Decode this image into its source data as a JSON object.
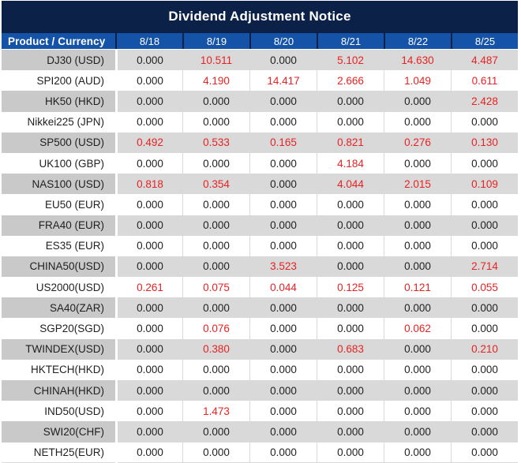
{
  "title": "Dividend Adjustment Notice",
  "chart_data": {
    "type": "table",
    "title": "Dividend Adjustment Notice",
    "columns": [
      "Product / Currency",
      "8/18",
      "8/19",
      "8/20",
      "8/21",
      "8/22",
      "8/25"
    ],
    "rows": [
      {
        "product": "DJ30 (USD)",
        "values": [
          "0.000",
          "10.511",
          "0.000",
          "5.102",
          "14.630",
          "4.487"
        ],
        "red": [
          0,
          1,
          0,
          1,
          1,
          1
        ]
      },
      {
        "product": "SPI200 (AUD)",
        "values": [
          "0.000",
          "4.190",
          "14.417",
          "2.666",
          "1.049",
          "0.611"
        ],
        "red": [
          0,
          1,
          1,
          1,
          1,
          1
        ]
      },
      {
        "product": "HK50 (HKD)",
        "values": [
          "0.000",
          "0.000",
          "0.000",
          "0.000",
          "0.000",
          "2.428"
        ],
        "red": [
          0,
          0,
          0,
          0,
          0,
          1
        ]
      },
      {
        "product": "Nikkei225 (JPN)",
        "values": [
          "0.000",
          "0.000",
          "0.000",
          "0.000",
          "0.000",
          "0.000"
        ],
        "red": [
          0,
          0,
          0,
          0,
          0,
          0
        ]
      },
      {
        "product": "SP500 (USD)",
        "values": [
          "0.492",
          "0.533",
          "0.165",
          "0.821",
          "0.276",
          "0.130"
        ],
        "red": [
          1,
          1,
          1,
          1,
          1,
          1
        ]
      },
      {
        "product": "UK100 (GBP)",
        "values": [
          "0.000",
          "0.000",
          "0.000",
          "4.184",
          "0.000",
          "0.000"
        ],
        "red": [
          0,
          0,
          0,
          1,
          0,
          0
        ]
      },
      {
        "product": "NAS100 (USD)",
        "values": [
          "0.818",
          "0.354",
          "0.000",
          "4.044",
          "2.015",
          "0.109"
        ],
        "red": [
          1,
          1,
          0,
          1,
          1,
          1
        ]
      },
      {
        "product": "EU50 (EUR)",
        "values": [
          "0.000",
          "0.000",
          "0.000",
          "0.000",
          "0.000",
          "0.000"
        ],
        "red": [
          0,
          0,
          0,
          0,
          0,
          0
        ]
      },
      {
        "product": "FRA40 (EUR)",
        "values": [
          "0.000",
          "0.000",
          "0.000",
          "0.000",
          "0.000",
          "0.000"
        ],
        "red": [
          0,
          0,
          0,
          0,
          0,
          0
        ]
      },
      {
        "product": "ES35 (EUR)",
        "values": [
          "0.000",
          "0.000",
          "0.000",
          "0.000",
          "0.000",
          "0.000"
        ],
        "red": [
          0,
          0,
          0,
          0,
          0,
          0
        ]
      },
      {
        "product": "CHINA50(USD)",
        "values": [
          "0.000",
          "0.000",
          "3.523",
          "0.000",
          "0.000",
          "2.714"
        ],
        "red": [
          0,
          0,
          1,
          0,
          0,
          1
        ]
      },
      {
        "product": "US2000(USD)",
        "values": [
          "0.261",
          "0.075",
          "0.044",
          "0.125",
          "0.121",
          "0.055"
        ],
        "red": [
          1,
          1,
          1,
          1,
          1,
          1
        ]
      },
      {
        "product": "SA40(ZAR)",
        "values": [
          "0.000",
          "0.000",
          "0.000",
          "0.000",
          "0.000",
          "0.000"
        ],
        "red": [
          0,
          0,
          0,
          0,
          0,
          0
        ]
      },
      {
        "product": "SGP20(SGD)",
        "values": [
          "0.000",
          "0.076",
          "0.000",
          "0.000",
          "0.062",
          "0.000"
        ],
        "red": [
          0,
          1,
          0,
          0,
          1,
          0
        ]
      },
      {
        "product": "TWINDEX(USD)",
        "values": [
          "0.000",
          "0.380",
          "0.000",
          "0.683",
          "0.000",
          "0.210"
        ],
        "red": [
          0,
          1,
          0,
          1,
          0,
          1
        ]
      },
      {
        "product": "HKTECH(HKD)",
        "values": [
          "0.000",
          "0.000",
          "0.000",
          "0.000",
          "0.000",
          "0.000"
        ],
        "red": [
          0,
          0,
          0,
          0,
          0,
          0
        ]
      },
      {
        "product": "CHINAH(HKD)",
        "values": [
          "0.000",
          "0.000",
          "0.000",
          "0.000",
          "0.000",
          "0.000"
        ],
        "red": [
          0,
          0,
          0,
          0,
          0,
          0
        ]
      },
      {
        "product": "IND50(USD)",
        "values": [
          "0.000",
          "1.473",
          "0.000",
          "0.000",
          "0.000",
          "0.000"
        ],
        "red": [
          0,
          1,
          0,
          0,
          0,
          0
        ]
      },
      {
        "product": "SWI20(CHF)",
        "values": [
          "0.000",
          "0.000",
          "0.000",
          "0.000",
          "0.000",
          "0.000"
        ],
        "red": [
          0,
          0,
          0,
          0,
          0,
          0
        ]
      },
      {
        "product": "NETH25(EUR)",
        "values": [
          "0.000",
          "0.000",
          "0.000",
          "0.000",
          "0.000",
          "0.000"
        ],
        "red": [
          0,
          0,
          0,
          0,
          0,
          0
        ]
      }
    ],
    "layout": {
      "stripe_pattern": "first data row shaded, alternating",
      "value_alignment": "center",
      "product_alignment": "right"
    }
  },
  "colors": {
    "title_bg": "#0b2148",
    "header_bg": "#1553a8",
    "header_text": "#ffffff",
    "stripe_bg": "#d9d9d9",
    "stripe_left_bg": "#c9c9c9",
    "value_black": "#1f1f1f",
    "value_red": "#e82222"
  }
}
